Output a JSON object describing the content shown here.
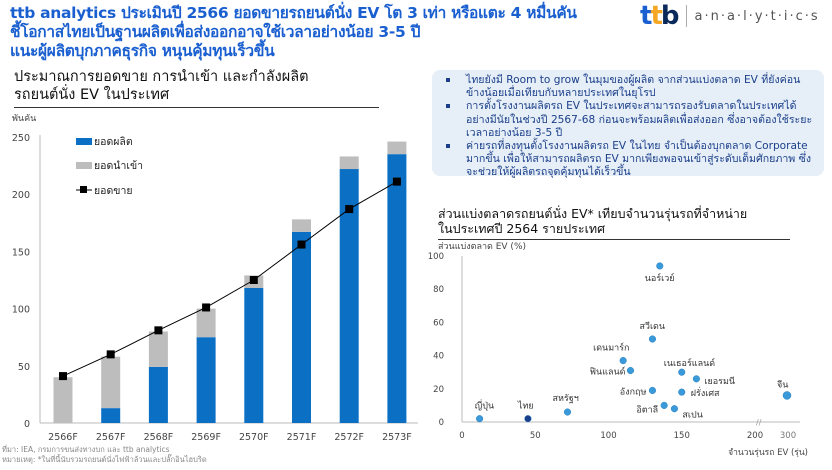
{
  "headline": [
    "ttb analytics ประเมินปี 2566 ยอดขายรถยนต์นั่ง EV โต 3 เท่า หรือแตะ 4 หมื่นคัน",
    "ชี้โอกาสไทยเป็นฐานผลิตเพื่อส่งออกอาจใช้เวลาอย่างน้อย 3-5 ปี",
    "แนะผู้ผลิตบุกภาคธุรกิจ หนุนคุ้มทุนเร็วขึ้น"
  ],
  "logo": {
    "brand": "ttb",
    "product": "a·n·a·l·y·t·i·c·s",
    "colors": [
      "#1a5fd0",
      "#f5a623",
      "#0b2a5b"
    ]
  },
  "insights": [
    "ไทยยังมี Room to grow ในมุมของผู้ผลิต จากส่วนแบ่งตลาด EV ที่ยังค่อนข้างน้อยเมื่อเทียบกับหลายประเทศในยุโรป",
    "การตั้งโรงงานผลิตรถ EV ในประเทศจะสามารถรองรับตลาดในประเทศได้อย่างมีนัยในช่วงปี 2567-68 ก่อนจะพร้อมผลิตเพื่อส่งออก ซึ่งอาจต้องใช้ระยะเวลาอย่างน้อย 3-5 ปี",
    "ค่ายรถที่ลงทุนตั้งโรงงานผลิตรถ EV ในไทย จำเป็นต้องบุกตลาด Corporate มากขึ้น เพื่อให้สามารถผลิตรถ EV มากเพียงพอจนเข้าสู่ระดับเต็มศักยภาพ ซึ่งจะช่วยให้ผู้ผลิตรถจุดคุ้มทุนได้เร็วขึ้น"
  ],
  "footnote": [
    "ที่มา: IEA, กรมการขนส่งทางบก และ ttb analytics",
    "หมายเหตุ: *ในที่นี้นับรวมรถยนต์นั่งไฟฟ้าล้วนและปลั๊กอินไฮบริด"
  ],
  "chart_data": [
    {
      "type": "bar",
      "stacked": true,
      "title": [
        "ประมาณการยอดขาย การนำเข้า และกำลังผลิต",
        "รถยนต์นั่ง EV ในประเทศ"
      ],
      "ylabel": "พันคัน",
      "ylim": [
        0,
        250
      ],
      "yticks": [
        0,
        50,
        100,
        150,
        200,
        250
      ],
      "categories": [
        "2566F",
        "2567F",
        "2568F",
        "2569F",
        "2570F",
        "2571F",
        "2572F",
        "2573F"
      ],
      "series": [
        {
          "name": "ยอดผลิต",
          "type": "bar",
          "color": "#0b6fc4",
          "values": [
            0,
            13,
            49,
            75,
            118,
            167,
            222,
            235
          ]
        },
        {
          "name": "ยอดนำเข้า",
          "type": "bar",
          "color": "#bdbdbd",
          "values": [
            40,
            45,
            31,
            25,
            11,
            11,
            11,
            11
          ]
        },
        {
          "name": "ยอดขาย",
          "type": "line",
          "color": "#000000",
          "marker": "square",
          "values": [
            41,
            60,
            81,
            101,
            125,
            156,
            187,
            211
          ]
        }
      ],
      "legend": "top-left",
      "grid": false
    },
    {
      "type": "scatter",
      "title": [
        "ส่วนแบ่งตลาดรถยนต์นั่ง EV* เทียบจำนวนรุ่นรถที่จำหน่าย",
        "ในประเทศปี 2564 รายประเทศ"
      ],
      "ylabel": "ส่วนแบ่งตลาด EV (%)",
      "xlabel": "จำนวนรุ่นรถ EV (รุ่น)",
      "ylim": [
        0,
        100
      ],
      "yticks": [
        0,
        20,
        40,
        60,
        80,
        100
      ],
      "xticks": [
        0,
        50,
        100,
        150,
        200,
        300
      ],
      "x_axis_break": [
        200,
        300
      ],
      "grid": false,
      "point_color": "#3a9ad9",
      "highlight_color": "#1a3f8a",
      "points": [
        {
          "label": "ญี่ปุ่น",
          "x": 12,
          "y": 2
        },
        {
          "label": "ไทย",
          "x": 45,
          "y": 2,
          "highlight": true
        },
        {
          "label": "สหรัฐฯ",
          "x": 72,
          "y": 6
        },
        {
          "label": "เดนมาร์ก",
          "x": 110,
          "y": 37
        },
        {
          "label": "ฟินแลนด์",
          "x": 115,
          "y": 31
        },
        {
          "label": "สวีเดน",
          "x": 130,
          "y": 50
        },
        {
          "label": "นอร์เวย์",
          "x": 135,
          "y": 94
        },
        {
          "label": "อังกฤษ",
          "x": 130,
          "y": 19
        },
        {
          "label": "อิตาลี",
          "x": 138,
          "y": 10
        },
        {
          "label": "สเปน",
          "x": 145,
          "y": 8
        },
        {
          "label": "เนเธอร์แลนด์",
          "x": 150,
          "y": 30
        },
        {
          "label": "ฝรั่งเศส",
          "x": 150,
          "y": 18
        },
        {
          "label": "เยอรมนี",
          "x": 160,
          "y": 26
        },
        {
          "label": "จีน",
          "x": 300,
          "y": 16
        }
      ]
    }
  ]
}
